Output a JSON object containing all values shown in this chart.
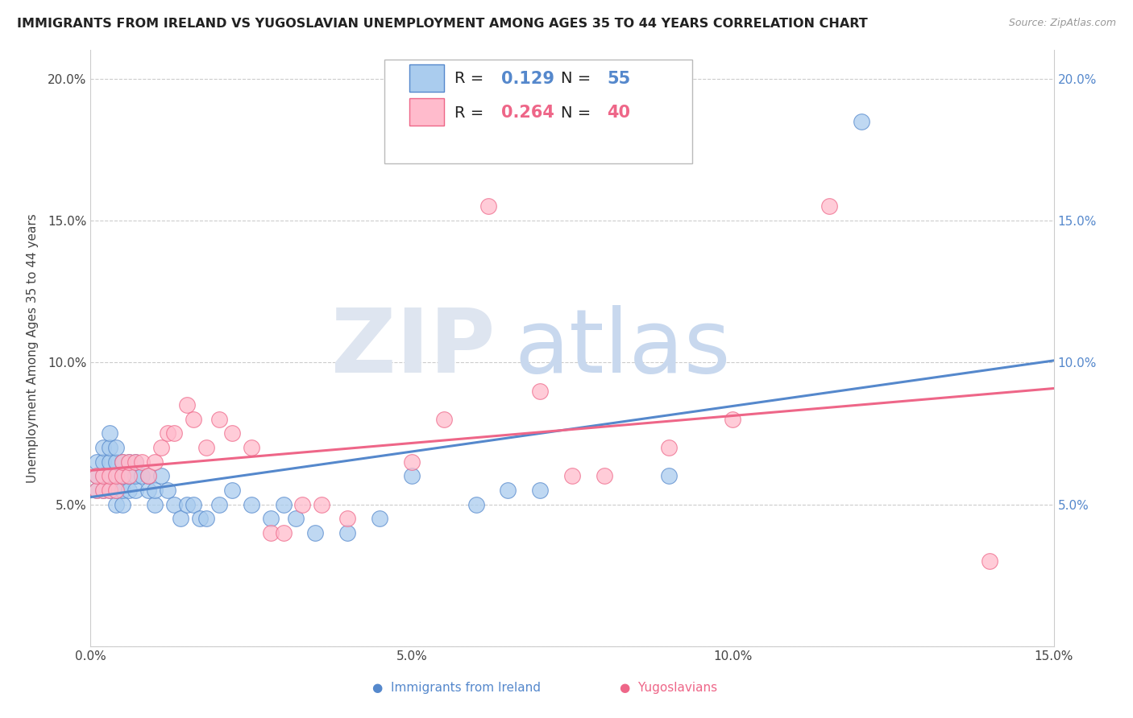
{
  "title": "IMMIGRANTS FROM IRELAND VS YUGOSLAVIAN UNEMPLOYMENT AMONG AGES 35 TO 44 YEARS CORRELATION CHART",
  "source": "Source: ZipAtlas.com",
  "ylabel": "Unemployment Among Ages 35 to 44 years",
  "legend_label1": "Immigrants from Ireland",
  "legend_label2": "Yugoslavians",
  "R1": "0.129",
  "N1": "55",
  "R2": "0.264",
  "N2": "40",
  "color1": "#AACCEE",
  "color2": "#FFBBCC",
  "trendline_color1": "#5588CC",
  "trendline_color2": "#EE6688",
  "xlim": [
    0.0,
    0.15
  ],
  "ylim": [
    0.0,
    0.21
  ],
  "xtick_labels": [
    "0.0%",
    "5.0%",
    "10.0%",
    "15.0%"
  ],
  "xtick_values": [
    0.0,
    0.05,
    0.1,
    0.15
  ],
  "ytick_labels": [
    "",
    "5.0%",
    "10.0%",
    "15.0%",
    "20.0%"
  ],
  "ytick_values": [
    0.0,
    0.05,
    0.1,
    0.15,
    0.2
  ],
  "blue_x": [
    0.001,
    0.001,
    0.001,
    0.002,
    0.002,
    0.002,
    0.002,
    0.003,
    0.003,
    0.003,
    0.003,
    0.003,
    0.004,
    0.004,
    0.004,
    0.004,
    0.004,
    0.005,
    0.005,
    0.005,
    0.005,
    0.006,
    0.006,
    0.006,
    0.007,
    0.007,
    0.007,
    0.008,
    0.009,
    0.009,
    0.01,
    0.01,
    0.011,
    0.012,
    0.013,
    0.014,
    0.015,
    0.016,
    0.017,
    0.018,
    0.02,
    0.022,
    0.025,
    0.028,
    0.03,
    0.032,
    0.035,
    0.04,
    0.045,
    0.05,
    0.06,
    0.065,
    0.07,
    0.09,
    0.12
  ],
  "blue_y": [
    0.055,
    0.06,
    0.065,
    0.055,
    0.06,
    0.065,
    0.07,
    0.055,
    0.06,
    0.065,
    0.07,
    0.075,
    0.05,
    0.055,
    0.06,
    0.065,
    0.07,
    0.05,
    0.055,
    0.06,
    0.065,
    0.055,
    0.06,
    0.065,
    0.055,
    0.06,
    0.065,
    0.06,
    0.055,
    0.06,
    0.05,
    0.055,
    0.06,
    0.055,
    0.05,
    0.045,
    0.05,
    0.05,
    0.045,
    0.045,
    0.05,
    0.055,
    0.05,
    0.045,
    0.05,
    0.045,
    0.04,
    0.04,
    0.045,
    0.06,
    0.05,
    0.055,
    0.055,
    0.06,
    0.185
  ],
  "pink_x": [
    0.001,
    0.001,
    0.002,
    0.002,
    0.003,
    0.003,
    0.004,
    0.004,
    0.005,
    0.005,
    0.006,
    0.006,
    0.007,
    0.008,
    0.009,
    0.01,
    0.011,
    0.012,
    0.013,
    0.015,
    0.016,
    0.018,
    0.02,
    0.022,
    0.025,
    0.028,
    0.03,
    0.033,
    0.036,
    0.04,
    0.05,
    0.055,
    0.062,
    0.07,
    0.075,
    0.08,
    0.09,
    0.1,
    0.115,
    0.14
  ],
  "pink_y": [
    0.055,
    0.06,
    0.055,
    0.06,
    0.055,
    0.06,
    0.055,
    0.06,
    0.06,
    0.065,
    0.06,
    0.065,
    0.065,
    0.065,
    0.06,
    0.065,
    0.07,
    0.075,
    0.075,
    0.085,
    0.08,
    0.07,
    0.08,
    0.075,
    0.07,
    0.04,
    0.04,
    0.05,
    0.05,
    0.045,
    0.065,
    0.08,
    0.155,
    0.09,
    0.06,
    0.06,
    0.07,
    0.08,
    0.155,
    0.03
  ]
}
